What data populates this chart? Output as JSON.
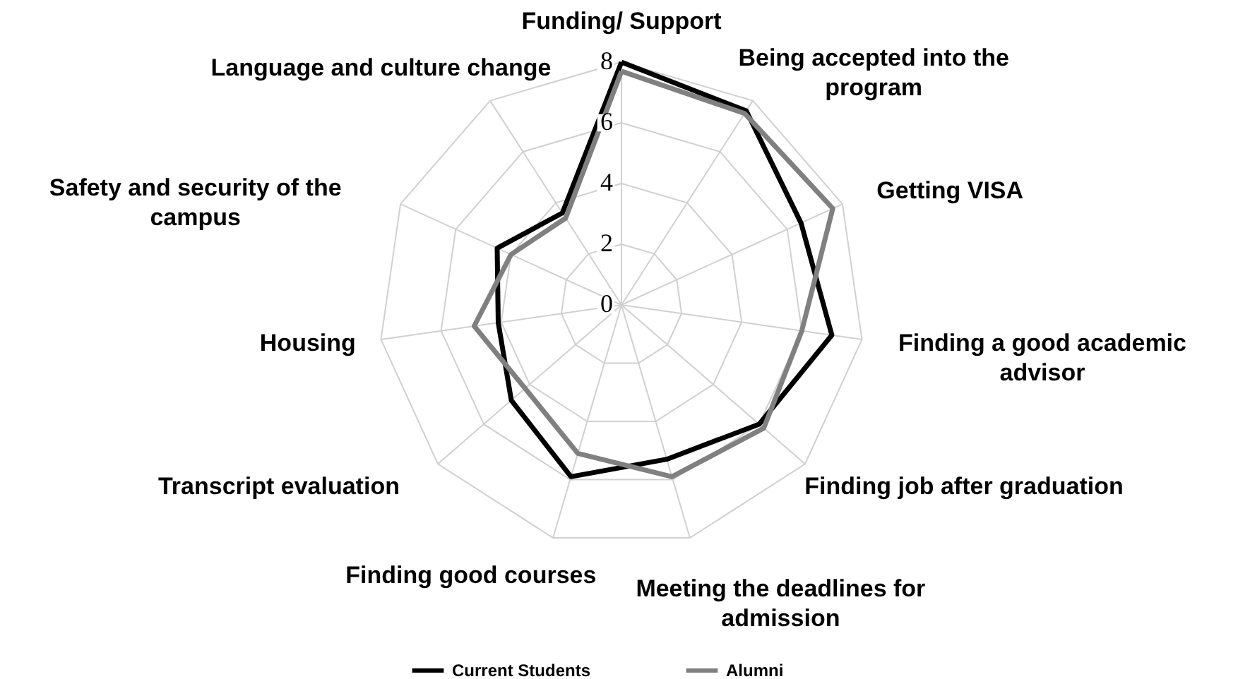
{
  "chart_data": {
    "type": "radar",
    "categories": [
      "Funding/ Support",
      "Being accepted into the\nprogram",
      "Getting VISA",
      "Finding a good academic\nadvisor",
      "Finding job after graduation",
      "Meeting the deadlines for\nadmission",
      "Finding good courses",
      "Transcript evaluation",
      "Housing",
      "Safety and security of the\ncampus",
      "Language and culture change"
    ],
    "series": [
      {
        "name": "Current Students",
        "color": "#000000",
        "values": [
          8.0,
          7.6,
          6.5,
          7.0,
          6.0,
          5.3,
          5.9,
          4.8,
          4.1,
          4.5,
          3.6
        ]
      },
      {
        "name": "Alumni",
        "color": "#808080",
        "values": [
          7.7,
          7.5,
          7.65,
          6.0,
          6.2,
          5.9,
          5.1,
          4.2,
          4.9,
          4.0,
          3.4
        ]
      }
    ],
    "ylim": [
      0,
      8
    ],
    "yticks": [
      0,
      2,
      4,
      6,
      8
    ],
    "grid": true,
    "legend": "bottom"
  }
}
